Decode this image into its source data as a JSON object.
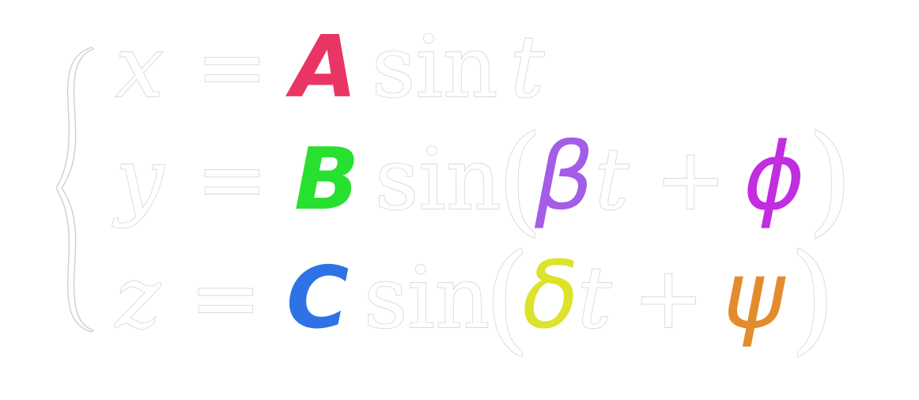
{
  "equations": [
    {
      "lhs": "x",
      "eq": "=",
      "coef": "A",
      "coef_color": "#e83563",
      "func": "sin",
      "open": "",
      "greek": "",
      "greek_color": "",
      "t": "t",
      "plus": "",
      "phase": "",
      "phase_color": "",
      "close": ""
    },
    {
      "lhs": "y",
      "eq": "=",
      "coef": "B",
      "coef_color": "#27e02f",
      "func": "sin",
      "open": "(",
      "greek": "β",
      "greek_color": "#a35de6",
      "t": "t",
      "plus": "+",
      "phase": "ϕ",
      "phase_color": "#c22de0",
      "close": ")"
    },
    {
      "lhs": "z",
      "eq": "=",
      "coef": "C",
      "coef_color": "#2f72e6",
      "func": "sin",
      "open": "(",
      "greek": "δ",
      "greek_color": "#dde22a",
      "t": "t",
      "plus": "+",
      "phase": "ψ",
      "phase_color": "#e38c2e",
      "close": ")"
    }
  ],
  "brace": "{"
}
